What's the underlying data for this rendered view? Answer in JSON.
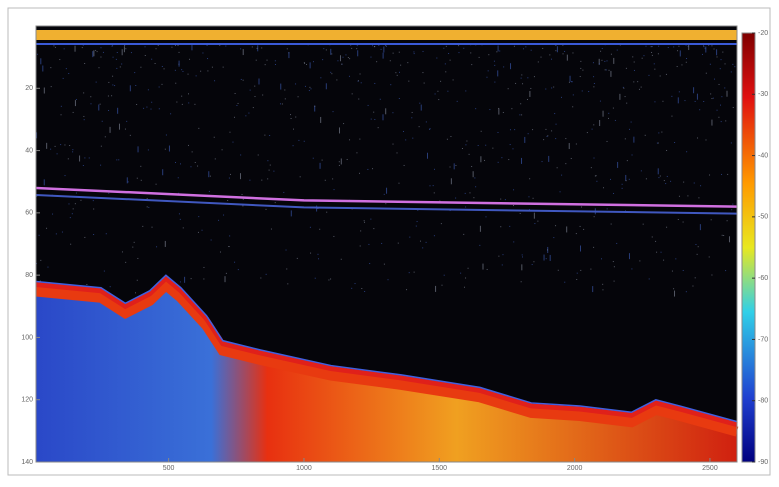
{
  "chart_data": {
    "type": "echogram",
    "xlim": [
      10,
      2600
    ],
    "xticks": [
      500,
      1000,
      1500,
      2000,
      2500
    ],
    "ylim": [
      0,
      140
    ],
    "yticks": [
      20,
      40,
      60,
      80,
      100,
      120,
      140
    ],
    "clim": [
      -90,
      -20
    ],
    "cticks": [
      -20,
      -30,
      -40,
      -50,
      -60,
      -70,
      -80,
      -90
    ],
    "series": [
      {
        "color": "#e0201a",
        "x": [
          10,
          250,
          340,
          430,
          490,
          545,
          640,
          700,
          840,
          1100,
          1360,
          1650,
          1840,
          2020,
          2210,
          2300,
          2390,
          2600
        ],
        "values": [
          83,
          85,
          90,
          86,
          81,
          85,
          94,
          102,
          105,
          110,
          113,
          117,
          122,
          123,
          125,
          121,
          123,
          128
        ]
      },
      {
        "color": "#d070e0",
        "x": [
          10,
          1000,
          2600
        ],
        "values": [
          52,
          56,
          58
        ]
      }
    ]
  }
}
